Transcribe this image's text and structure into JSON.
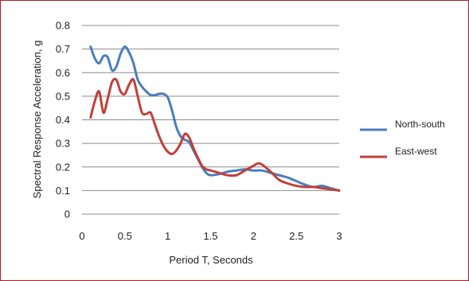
{
  "chart_data": {
    "type": "line",
    "title": "",
    "xlabel": "Period T, Seconds",
    "ylabel": "Spectral Response Acceleration, g",
    "xlim": [
      0,
      3
    ],
    "ylim": [
      0,
      0.8
    ],
    "xticks": [
      "0",
      "0.5",
      "1",
      "1.5",
      "2",
      "2.5",
      "3"
    ],
    "yticks": [
      "0",
      "0.1",
      "0.2",
      "0.3",
      "0.4",
      "0.5",
      "0.6",
      "0.7",
      "0.8"
    ],
    "grid": "horizontal",
    "legend_position": "right",
    "series": [
      {
        "name": "North-south",
        "color": "#4a7ebb",
        "x": [
          0.1,
          0.15,
          0.2,
          0.25,
          0.3,
          0.35,
          0.4,
          0.45,
          0.5,
          0.55,
          0.6,
          0.65,
          0.7,
          0.75,
          0.8,
          0.85,
          0.9,
          0.95,
          1.0,
          1.05,
          1.1,
          1.15,
          1.2,
          1.25,
          1.3,
          1.35,
          1.4,
          1.45,
          1.5,
          1.6,
          1.7,
          1.8,
          1.9,
          2.0,
          2.1,
          2.2,
          2.3,
          2.4,
          2.5,
          2.6,
          2.7,
          2.8,
          2.9,
          3.0
        ],
        "y": [
          0.71,
          0.66,
          0.64,
          0.67,
          0.665,
          0.61,
          0.625,
          0.68,
          0.71,
          0.685,
          0.64,
          0.57,
          0.54,
          0.52,
          0.505,
          0.505,
          0.51,
          0.51,
          0.495,
          0.44,
          0.37,
          0.33,
          0.315,
          0.305,
          0.27,
          0.235,
          0.2,
          0.175,
          0.165,
          0.17,
          0.18,
          0.185,
          0.19,
          0.185,
          0.185,
          0.175,
          0.165,
          0.155,
          0.14,
          0.125,
          0.115,
          0.12,
          0.11,
          0.1
        ]
      },
      {
        "name": "East-west",
        "color": "#c0403a",
        "x": [
          0.1,
          0.15,
          0.2,
          0.25,
          0.3,
          0.35,
          0.4,
          0.45,
          0.5,
          0.55,
          0.6,
          0.65,
          0.7,
          0.75,
          0.8,
          0.85,
          0.9,
          0.95,
          1.0,
          1.05,
          1.1,
          1.15,
          1.2,
          1.25,
          1.3,
          1.35,
          1.4,
          1.45,
          1.5,
          1.6,
          1.7,
          1.8,
          1.9,
          2.0,
          2.05,
          2.1,
          2.2,
          2.3,
          2.4,
          2.5,
          2.6,
          2.7,
          2.8,
          2.9,
          3.0
        ],
        "y": [
          0.41,
          0.48,
          0.52,
          0.43,
          0.49,
          0.56,
          0.57,
          0.52,
          0.51,
          0.55,
          0.57,
          0.5,
          0.43,
          0.425,
          0.43,
          0.38,
          0.33,
          0.29,
          0.265,
          0.255,
          0.27,
          0.3,
          0.34,
          0.325,
          0.28,
          0.24,
          0.205,
          0.19,
          0.185,
          0.175,
          0.165,
          0.165,
          0.185,
          0.205,
          0.215,
          0.21,
          0.18,
          0.145,
          0.13,
          0.12,
          0.115,
          0.115,
          0.11,
          0.105,
          0.1
        ]
      }
    ]
  }
}
